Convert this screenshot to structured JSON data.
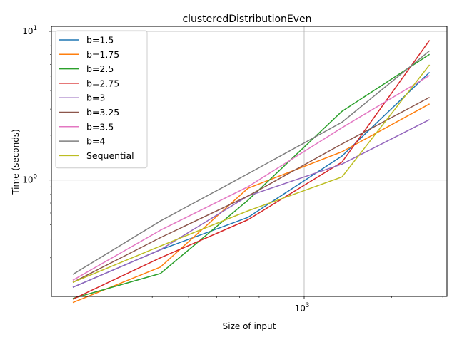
{
  "chart_data": {
    "type": "line",
    "title": "clusteredDistributionEven",
    "xlabel": "Size of input",
    "ylabel": "Time (seconds)",
    "xscale": "log",
    "yscale": "log",
    "xlim": [
      135,
      3100
    ],
    "ylim": [
      0.165,
      10.8
    ],
    "grid": "major",
    "legend_placement": "upper-left",
    "x_ticks": [
      {
        "value": 1000,
        "base": "10",
        "exp": "3"
      }
    ],
    "y_ticks": [
      {
        "value": 1,
        "base": "10",
        "exp": "0"
      },
      {
        "value": 10,
        "base": "10",
        "exp": "1"
      }
    ],
    "x": [
      160,
      320,
      640,
      1350,
      2700
    ],
    "series": [
      {
        "name": "b=1.5",
        "color": "#1f77b4",
        "values": [
          0.19,
          0.34,
          0.56,
          1.45,
          5.3
        ]
      },
      {
        "name": "b=1.75",
        "color": "#ff7f0e",
        "values": [
          0.15,
          0.26,
          0.88,
          1.55,
          3.25
        ]
      },
      {
        "name": "b=2.5",
        "color": "#2ca02c",
        "values": [
          0.16,
          0.235,
          0.73,
          2.9,
          7.0
        ]
      },
      {
        "name": "b=2.75",
        "color": "#d62728",
        "values": [
          0.158,
          0.3,
          0.54,
          1.32,
          8.7
        ]
      },
      {
        "name": "b=3",
        "color": "#9467bd",
        "values": [
          0.19,
          0.34,
          0.78,
          1.28,
          2.55
        ]
      },
      {
        "name": "b=3.25",
        "color": "#8c564b",
        "values": [
          0.205,
          0.41,
          0.78,
          1.75,
          3.6
        ]
      },
      {
        "name": "b=3.5",
        "color": "#e377c2",
        "values": [
          0.212,
          0.46,
          0.9,
          2.25,
          5.05
        ]
      },
      {
        "name": "b=4",
        "color": "#7f7f7f",
        "values": [
          0.232,
          0.53,
          1.1,
          2.45,
          7.4
        ]
      },
      {
        "name": "Sequential",
        "color": "#bcbd22",
        "values": [
          0.205,
          0.36,
          0.62,
          1.05,
          5.95
        ]
      }
    ]
  }
}
